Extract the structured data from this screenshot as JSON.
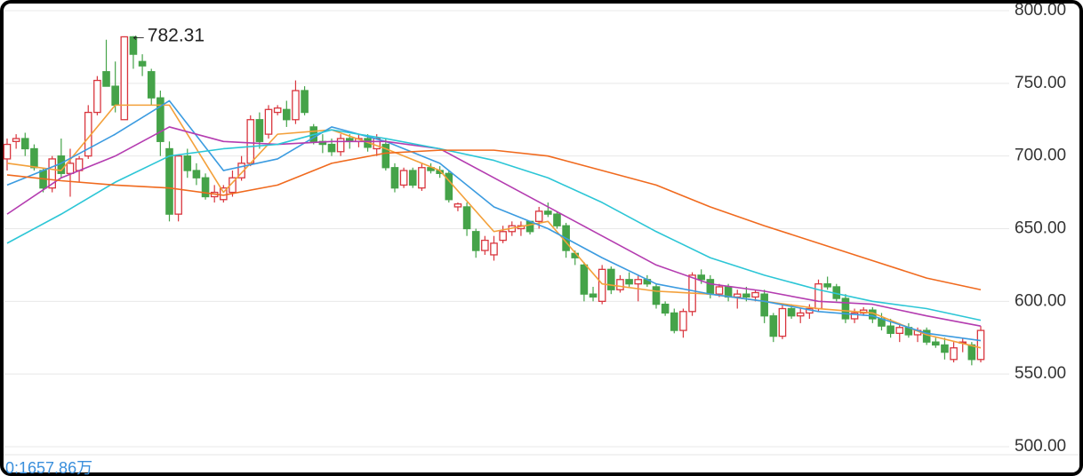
{
  "chart_data": {
    "type": "candlestick",
    "open": [
      698,
      710,
      712,
      705,
      690,
      678,
      700,
      688,
      690,
      700,
      730,
      758,
      748,
      725,
      782,
      765,
      758,
      740,
      705,
      660,
      700,
      690,
      685,
      672,
      670,
      675,
      685,
      695,
      725,
      715,
      730,
      732,
      725,
      745,
      720,
      710,
      708,
      703,
      712,
      710,
      712,
      705,
      708,
      692,
      680,
      690,
      678,
      692,
      690,
      688,
      665,
      665,
      648,
      635,
      632,
      642,
      648,
      650,
      655,
      655,
      662,
      660,
      652,
      633,
      625,
      605,
      600,
      622,
      608,
      615,
      612,
      615,
      610,
      598,
      592,
      580,
      593,
      618,
      615,
      605,
      610,
      603,
      605,
      603,
      605,
      590,
      576,
      595,
      590,
      592,
      595,
      612,
      610,
      602,
      588,
      592,
      594,
      588,
      583,
      578,
      582,
      577,
      580,
      572,
      570,
      560,
      572,
      570,
      560
    ],
    "high": [
      712,
      715,
      716,
      708,
      692,
      700,
      712,
      705,
      700,
      735,
      755,
      780,
      765,
      782.31,
      782.5,
      770,
      760,
      745,
      710,
      700,
      705,
      695,
      688,
      680,
      680,
      690,
      700,
      728,
      730,
      735,
      735,
      738,
      752,
      748,
      722,
      715,
      712,
      715,
      715,
      715,
      715,
      715,
      712,
      695,
      692,
      692,
      695,
      695,
      693,
      690,
      668,
      668,
      650,
      645,
      645,
      652,
      655,
      655,
      655,
      665,
      668,
      662,
      654,
      635,
      627,
      610,
      625,
      624,
      618,
      620,
      618,
      618,
      612,
      600,
      595,
      595,
      620,
      622,
      618,
      612,
      612,
      608,
      610,
      608,
      608,
      592,
      598,
      598,
      595,
      598,
      615,
      617,
      612,
      605,
      595,
      596,
      596,
      592,
      588,
      585,
      585,
      582,
      582,
      575,
      575,
      572,
      575,
      572,
      583
    ],
    "low": [
      690,
      705,
      700,
      690,
      675,
      675,
      685,
      672,
      682,
      698,
      728,
      748,
      730,
      725,
      760,
      755,
      735,
      700,
      655,
      655,
      685,
      680,
      670,
      668,
      668,
      672,
      683,
      693,
      705,
      712,
      728,
      720,
      722,
      728,
      708,
      702,
      700,
      700,
      705,
      706,
      703,
      700,
      690,
      675,
      678,
      678,
      676,
      688,
      685,
      668,
      662,
      645,
      630,
      632,
      628,
      640,
      645,
      645,
      646,
      650,
      658,
      650,
      630,
      625,
      600,
      600,
      598,
      605,
      606,
      610,
      600,
      610,
      595,
      590,
      578,
      575,
      590,
      612,
      602,
      603,
      600,
      595,
      600,
      600,
      585,
      572,
      574,
      588,
      585,
      588,
      593,
      608,
      600,
      585,
      585,
      590,
      585,
      580,
      575,
      572,
      575,
      572,
      570,
      568,
      560,
      558,
      565,
      556,
      558
    ],
    "close": [
      708,
      712,
      705,
      692,
      678,
      698,
      688,
      695,
      698,
      730,
      752,
      748,
      735,
      782,
      770,
      762,
      740,
      710,
      660,
      700,
      690,
      685,
      672,
      675,
      678,
      685,
      695,
      725,
      710,
      732,
      733,
      725,
      745,
      730,
      710,
      708,
      703,
      712,
      710,
      712,
      706,
      712,
      692,
      678,
      690,
      680,
      692,
      690,
      688,
      670,
      667,
      650,
      635,
      642,
      640,
      648,
      652,
      652,
      648,
      662,
      660,
      652,
      635,
      630,
      605,
      603,
      622,
      608,
      615,
      612,
      615,
      612,
      598,
      592,
      580,
      593,
      618,
      615,
      605,
      610,
      603,
      605,
      603,
      606,
      590,
      576,
      595,
      590,
      592,
      595,
      612,
      610,
      602,
      588,
      592,
      594,
      588,
      583,
      578,
      582,
      577,
      580,
      572,
      570,
      565,
      568,
      572,
      560,
      580
    ],
    "up_color": "#d9363e",
    "down_color": "#45a349",
    "lines": [
      {
        "x": [
          0,
          6,
          12,
          18,
          24,
          30,
          36,
          42,
          48,
          54,
          60,
          66,
          72,
          78,
          84,
          90,
          96,
          102,
          108
        ],
        "color": "#f3a03a",
        "values": [
          695,
          690,
          735,
          735,
          675,
          715,
          718,
          705,
          690,
          648,
          655,
          612,
          607,
          605,
          600,
          595,
          592,
          577,
          568
        ]
      },
      {
        "x": [
          0,
          6,
          12,
          18,
          24,
          30,
          36,
          42,
          48,
          54,
          60,
          66,
          72,
          78,
          84,
          90,
          96,
          102,
          108
        ],
        "color": "#3b9be0",
        "values": [
          680,
          695,
          715,
          738,
          690,
          698,
          720,
          710,
          695,
          665,
          650,
          630,
          612,
          605,
          600,
          593,
          590,
          578,
          573
        ]
      },
      {
        "x": [
          0,
          6,
          12,
          18,
          24,
          30,
          36,
          42,
          48,
          54,
          60,
          66,
          72,
          78,
          84,
          90,
          96,
          102,
          108
        ],
        "color": "#b43cb0",
        "values": [
          660,
          685,
          700,
          720,
          710,
          708,
          710,
          710,
          705,
          685,
          665,
          645,
          625,
          612,
          607,
          600,
          598,
          590,
          583
        ]
      },
      {
        "x": [
          0,
          6,
          12,
          18,
          24,
          30,
          36,
          42,
          48,
          54,
          60,
          66,
          72,
          78,
          84,
          90,
          96,
          102,
          108
        ],
        "color": "#2cc6d6",
        "values": [
          640,
          660,
          682,
          700,
          705,
          708,
          718,
          712,
          705,
          697,
          685,
          668,
          648,
          630,
          618,
          608,
          600,
          595,
          587
        ]
      },
      {
        "x": [
          0,
          6,
          12,
          18,
          24,
          30,
          36,
          42,
          48,
          54,
          60,
          66,
          72,
          78,
          84,
          90,
          96,
          102,
          108
        ],
        "color": "#f06a1e",
        "values": [
          687,
          683,
          680,
          678,
          673,
          680,
          695,
          702,
          704,
          704,
          700,
          690,
          680,
          665,
          652,
          640,
          628,
          616,
          608
        ]
      }
    ],
    "ylim": [
      500,
      800
    ],
    "yticks": [
      {
        "value": 500,
        "label": "500.00"
      },
      {
        "value": 550,
        "label": "550.00"
      },
      {
        "value": 600,
        "label": "600.00"
      },
      {
        "value": 650,
        "label": "650.00"
      },
      {
        "value": 700,
        "label": "700.00"
      },
      {
        "value": 750,
        "label": "750.00"
      },
      {
        "value": 800,
        "label": "800.00"
      }
    ],
    "grid": true,
    "max_index": 13,
    "volume_label": "0:1657.86万"
  }
}
